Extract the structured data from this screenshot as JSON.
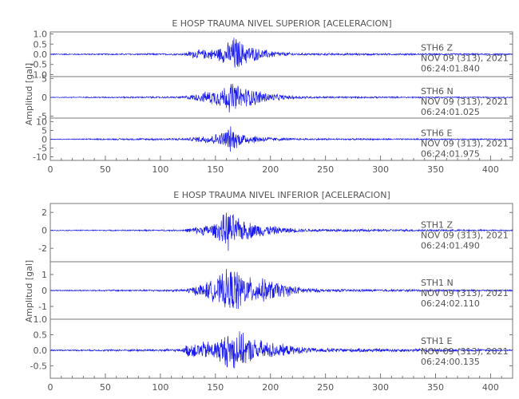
{
  "chart_data": [
    {
      "type": "line",
      "title": "E HOSP TRAUMA NIVEL SUPERIOR [ACELERACION]",
      "ylabel": "Amplitud [gal]",
      "xlabel": "",
      "xlim": [
        0,
        420
      ],
      "x_ticks": [
        "0",
        "50",
        "100",
        "150",
        "200",
        "250",
        "300",
        "350",
        "400"
      ],
      "x_tick_values": [
        0,
        50,
        100,
        150,
        200,
        250,
        300,
        350,
        400
      ],
      "panels": [
        {
          "station": "STH6",
          "component": "Z",
          "date": "NOV 09 (313), 2021",
          "time": "06:24:01.840",
          "ylim": [
            -1.1,
            1.1
          ],
          "y_ticks": [
            "1.0",
            "0.5",
            "0.0",
            "-0.5",
            "-1.0"
          ],
          "y_tick_values": [
            1.0,
            0.5,
            0.0,
            -0.5,
            -1.0
          ],
          "envelope": [
            [
              0,
              0.03
            ],
            [
              120,
              0.05
            ],
            [
              130,
              0.22
            ],
            [
              150,
              0.3
            ],
            [
              160,
              0.55
            ],
            [
              168,
              1.05
            ],
            [
              175,
              0.6
            ],
            [
              190,
              0.3
            ],
            [
              210,
              0.12
            ],
            [
              230,
              0.06
            ],
            [
              420,
              0.04
            ]
          ]
        },
        {
          "station": "STH6",
          "component": "N",
          "date": "NOV 09 (313), 2021",
          "time": "06:24:01.025",
          "ylim": [
            -5.5,
            5.5
          ],
          "y_ticks": [
            "5",
            "0",
            "-5"
          ],
          "y_tick_values": [
            5,
            0,
            -5
          ],
          "envelope": [
            [
              0,
              0.1
            ],
            [
              120,
              0.3
            ],
            [
              135,
              1.2
            ],
            [
              155,
              2.8
            ],
            [
              165,
              4.8
            ],
            [
              172,
              3.2
            ],
            [
              185,
              2.5
            ],
            [
              200,
              1.2
            ],
            [
              215,
              0.6
            ],
            [
              240,
              0.3
            ],
            [
              420,
              0.15
            ]
          ]
        },
        {
          "station": "STH6",
          "component": "E",
          "date": "NOV 09 (313), 2021",
          "time": "06:24:01.975",
          "ylim": [
            -12,
            12
          ],
          "y_ticks": [
            "10",
            "5",
            "0",
            "-5",
            "-10"
          ],
          "y_tick_values": [
            10,
            5,
            0,
            -5,
            -10
          ],
          "envelope": [
            [
              0,
              0.2
            ],
            [
              125,
              0.8
            ],
            [
              140,
              2.5
            ],
            [
              155,
              4
            ],
            [
              163,
              8.5
            ],
            [
              170,
              5
            ],
            [
              180,
              3
            ],
            [
              200,
              1.3
            ],
            [
              220,
              0.6
            ],
            [
              420,
              0.3
            ]
          ]
        }
      ]
    },
    {
      "type": "line",
      "title": "E HOSP TRAUMA NIVEL INFERIOR [ACELERACION]",
      "ylabel": "Amplitud [gal]",
      "xlabel": "",
      "xlim": [
        0,
        420
      ],
      "x_ticks": [
        "0",
        "50",
        "100",
        "150",
        "200",
        "250",
        "300",
        "350",
        "400"
      ],
      "x_tick_values": [
        0,
        50,
        100,
        150,
        200,
        250,
        300,
        350,
        400
      ],
      "panels": [
        {
          "station": "STH1",
          "component": "Z",
          "date": "NOV 09 (313), 2021",
          "time": "06:24:01.490",
          "ylim": [
            -3.5,
            3
          ],
          "y_ticks": [
            "2",
            "0",
            "-2"
          ],
          "y_tick_values": [
            2,
            0,
            -2
          ],
          "envelope": [
            [
              0,
              0.05
            ],
            [
              120,
              0.1
            ],
            [
              130,
              0.4
            ],
            [
              150,
              0.9
            ],
            [
              162,
              2.6
            ],
            [
              170,
              1.5
            ],
            [
              185,
              0.9
            ],
            [
              210,
              0.4
            ],
            [
              230,
              0.2
            ],
            [
              420,
              0.08
            ]
          ]
        },
        {
          "station": "STH1",
          "component": "N",
          "date": "NOV 09 (313), 2021",
          "time": "06:24:02.110",
          "ylim": [
            -1.8,
            1.8
          ],
          "y_ticks": [
            "1",
            "0",
            "-1"
          ],
          "y_tick_values": [
            1,
            0,
            -1
          ],
          "envelope": [
            [
              0,
              0.03
            ],
            [
              120,
              0.08
            ],
            [
              135,
              0.4
            ],
            [
              150,
              0.8
            ],
            [
              160,
              1.4
            ],
            [
              168,
              1.6
            ],
            [
              180,
              0.9
            ],
            [
              195,
              0.8
            ],
            [
              210,
              0.5
            ],
            [
              230,
              0.2
            ],
            [
              250,
              0.1
            ],
            [
              420,
              0.05
            ]
          ]
        },
        {
          "station": "STH1",
          "component": "E",
          "date": "NOV 09 (313), 2021",
          "time": "06:24:00.135",
          "ylim": [
            -0.9,
            1.0
          ],
          "y_ticks": [
            "1.0",
            "0.5",
            "0.0",
            "-0.5"
          ],
          "y_tick_values": [
            1.0,
            0.5,
            0.0,
            -0.5
          ],
          "envelope": [
            [
              0,
              0.02
            ],
            [
              120,
              0.05
            ],
            [
              125,
              0.25
            ],
            [
              150,
              0.35
            ],
            [
              160,
              0.6
            ],
            [
              168,
              0.75
            ],
            [
              180,
              0.45
            ],
            [
              200,
              0.3
            ],
            [
              220,
              0.15
            ],
            [
              240,
              0.08
            ],
            [
              420,
              0.03
            ]
          ]
        }
      ]
    }
  ]
}
